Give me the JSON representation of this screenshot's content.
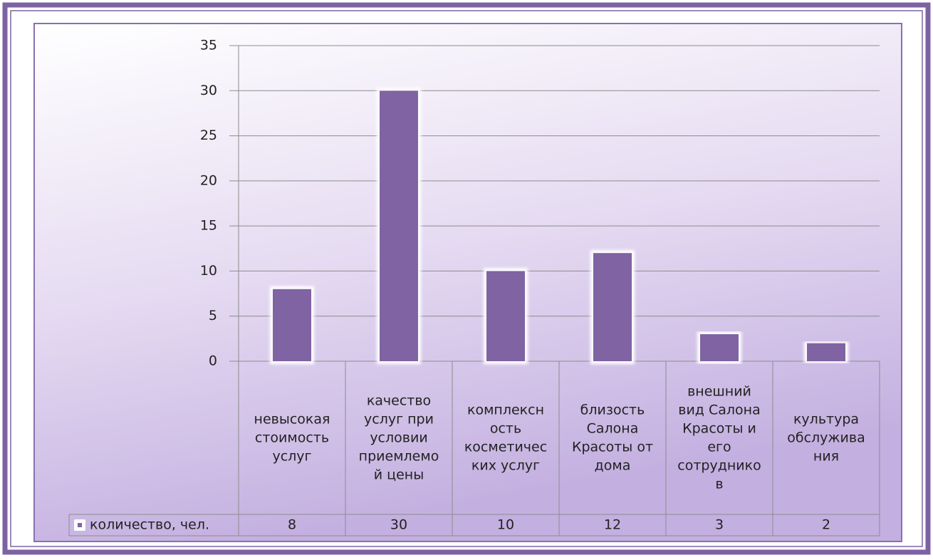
{
  "chart_data": {
    "type": "bar",
    "categories": [
      "невысокая\nстоимость\nуслуг",
      "качество\nуслуг при\nусловии\nприемлемо\nй цены",
      "комплексн\nость\nкосметичес\nких услуг",
      "близость\nСалона\nКрасоты от\nдома",
      "внешний\nвид Салона\nКрасоты и\nего\nсотруднико\nв",
      "культура\nобслужива\nния"
    ],
    "series": [
      {
        "name": "количество, чел.",
        "color": "#8064a2",
        "values": [
          8,
          30,
          10,
          12,
          3,
          2
        ]
      }
    ],
    "ylim": [
      0,
      35
    ],
    "yticks": [
      0,
      5,
      10,
      15,
      20,
      25,
      30,
      35
    ],
    "grid": true,
    "data_table": true
  }
}
